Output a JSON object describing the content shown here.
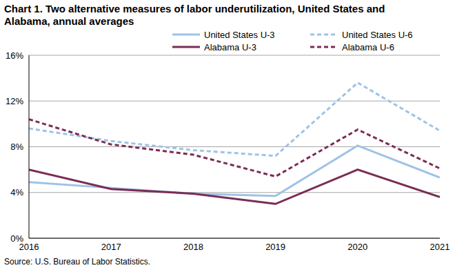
{
  "chart_data": {
    "type": "line",
    "title": "Chart 1. Two alternative measures of labor underutilization, United States and Alabama, annual averages",
    "annotations": [
      "Source: U.S. Bureau of Labor Statistics."
    ],
    "x": [
      2016,
      2017,
      2018,
      2019,
      2020,
      2021
    ],
    "xlim": [
      2016,
      2021
    ],
    "xticks": [
      2016,
      2017,
      2018,
      2019,
      2020,
      2021
    ],
    "ylim": [
      0,
      16
    ],
    "yticks": [
      {
        "value": 0,
        "label": "0%"
      },
      {
        "value": 4,
        "label": "4%"
      },
      {
        "value": 8,
        "label": "8%"
      },
      {
        "value": 12,
        "label": "12%"
      },
      {
        "value": 16,
        "label": "16%"
      }
    ],
    "grid": true,
    "legend": "top",
    "series": [
      {
        "name": "United States U-3",
        "color": "#9dc3e6",
        "line_style": "solid",
        "values": [
          4.9,
          4.4,
          3.9,
          3.7,
          8.1,
          5.3
        ]
      },
      {
        "name": "United States U-6",
        "color": "#9dc3e6",
        "line_style": "dashed",
        "values": [
          9.6,
          8.5,
          7.7,
          7.2,
          13.6,
          9.4
        ]
      },
      {
        "name": "Alabama U-3",
        "color": "#7b2c55",
        "line_style": "solid",
        "values": [
          6.0,
          4.3,
          3.9,
          3.0,
          6.0,
          3.6
        ]
      },
      {
        "name": "Alabama U-6",
        "color": "#7b2c55",
        "line_style": "dashed",
        "values": [
          10.4,
          8.2,
          7.3,
          5.4,
          9.5,
          6.1
        ]
      }
    ]
  }
}
